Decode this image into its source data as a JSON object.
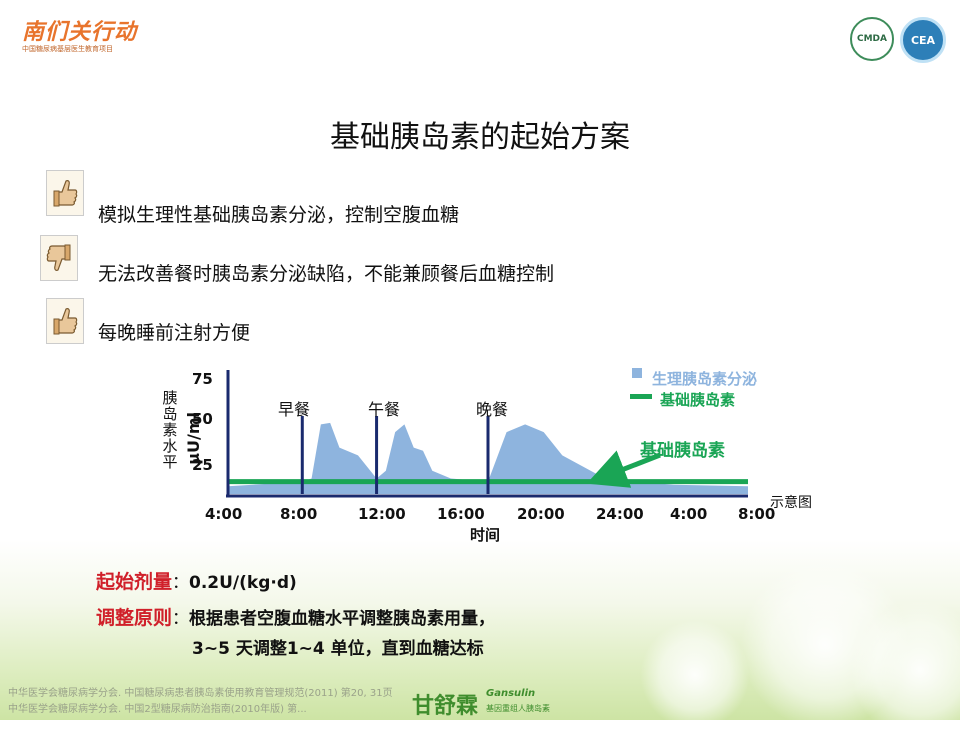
{
  "header": {
    "brand": "南们关行动",
    "brand_sub": "中国糖尿病基层医生教育项目",
    "badge_cmda": "CMDA",
    "badge_cea": "CEA"
  },
  "slide": {
    "title": "基础胰岛素的起始方案",
    "bullets": [
      {
        "icon": "thumbs-up-icon",
        "text": "模拟生理性基础胰岛素分泌，控制空腹血糖"
      },
      {
        "icon": "thumbs-down-icon",
        "text": "无法改善餐时胰岛素分泌缺陷，不能兼顾餐后血糖控制"
      },
      {
        "icon": "thumbs-up-icon",
        "text": "每晚睡前注射方便"
      }
    ]
  },
  "chart_data": {
    "type": "area",
    "ylabel": "胰岛素水平",
    "yunit": "μU/ml",
    "xlabel": "时间",
    "yticks": [
      "75",
      "50",
      "25"
    ],
    "ylim": [
      0,
      75
    ],
    "x_ticks": [
      "4:00",
      "8:00",
      "12:00",
      "16:00",
      "20:00",
      "24:00",
      "4:00",
      "8:00"
    ],
    "meals": [
      {
        "label": "早餐",
        "x": 8
      },
      {
        "label": "午餐",
        "x": 12
      },
      {
        "label": "晚餐",
        "x": 18
      }
    ],
    "series": [
      {
        "name": "生理胰岛素分泌",
        "color": "#8eb4de",
        "x": [
          4,
          8,
          8.5,
          9,
          9.5,
          10,
          11,
          12,
          12.5,
          13,
          13.5,
          14,
          14.5,
          15,
          16,
          18,
          19,
          20,
          21,
          22,
          24,
          26,
          28,
          32
        ],
        "values": [
          5,
          8,
          10,
          45,
          46,
          30,
          25,
          10,
          15,
          40,
          45,
          30,
          28,
          15,
          10,
          8,
          40,
          45,
          40,
          25,
          12,
          8,
          6,
          5
        ]
      },
      {
        "name": "基础胰岛素",
        "color": "#1aa555",
        "x": [
          4,
          32
        ],
        "values": [
          8,
          8
        ]
      }
    ],
    "legend": [
      {
        "label": "生理胰岛素分泌",
        "color": "#8eb4de"
      },
      {
        "label": "基础胰岛素",
        "color": "#1aa555"
      }
    ],
    "annotation": "基础胰岛素",
    "note": "示意图"
  },
  "dose": {
    "label": "起始剂量",
    "colon": "：",
    "value": "0.2U/(kg·d)"
  },
  "rule": {
    "label": "调整原则",
    "colon": "：",
    "line1": "根据患者空腹血糖水平调整胰岛素用量，",
    "line2": "3~5  天调整1~4 单位，直到血糖达标"
  },
  "references": [
    "中华医学会糖尿病学分会. 中国糖尿病患者胰岛素使用教育管理规范(2011) 第20, 31页",
    "中华医学会糖尿病学分会. 中国2型糖尿病防治指南(2010年版) 第..."
  ],
  "footer_brand": {
    "name": "甘舒霖",
    "en": "Gansulin",
    "sub": "基因重组人胰岛素"
  }
}
